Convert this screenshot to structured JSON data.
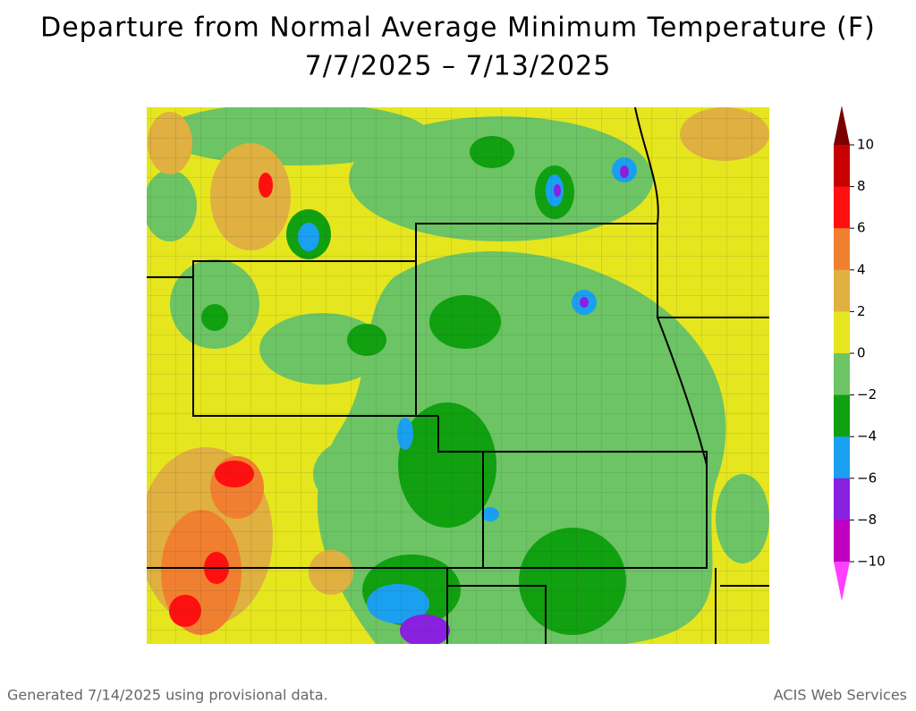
{
  "header": {
    "title_lines": [
      "Departure from Normal Average Minimum Temperature (F)",
      "7/7/2025 – 7/13/2025"
    ]
  },
  "legend": {
    "labels": [
      "10",
      "8",
      "6",
      "4",
      "2",
      "0",
      "−2",
      "−4",
      "−6",
      "−8",
      "−10"
    ],
    "colors": [
      "#7a0000",
      "#c80000",
      "#ff1010",
      "#f08030",
      "#e0b040",
      "#e6e61e",
      "#6cc464",
      "#10a010",
      "#1aa0f0",
      "#8a20e0",
      "#c000c0",
      "#ff40ff"
    ]
  },
  "footer": {
    "left": "Generated 7/14/2025 using provisional data.",
    "right": "ACIS Web Services"
  }
}
